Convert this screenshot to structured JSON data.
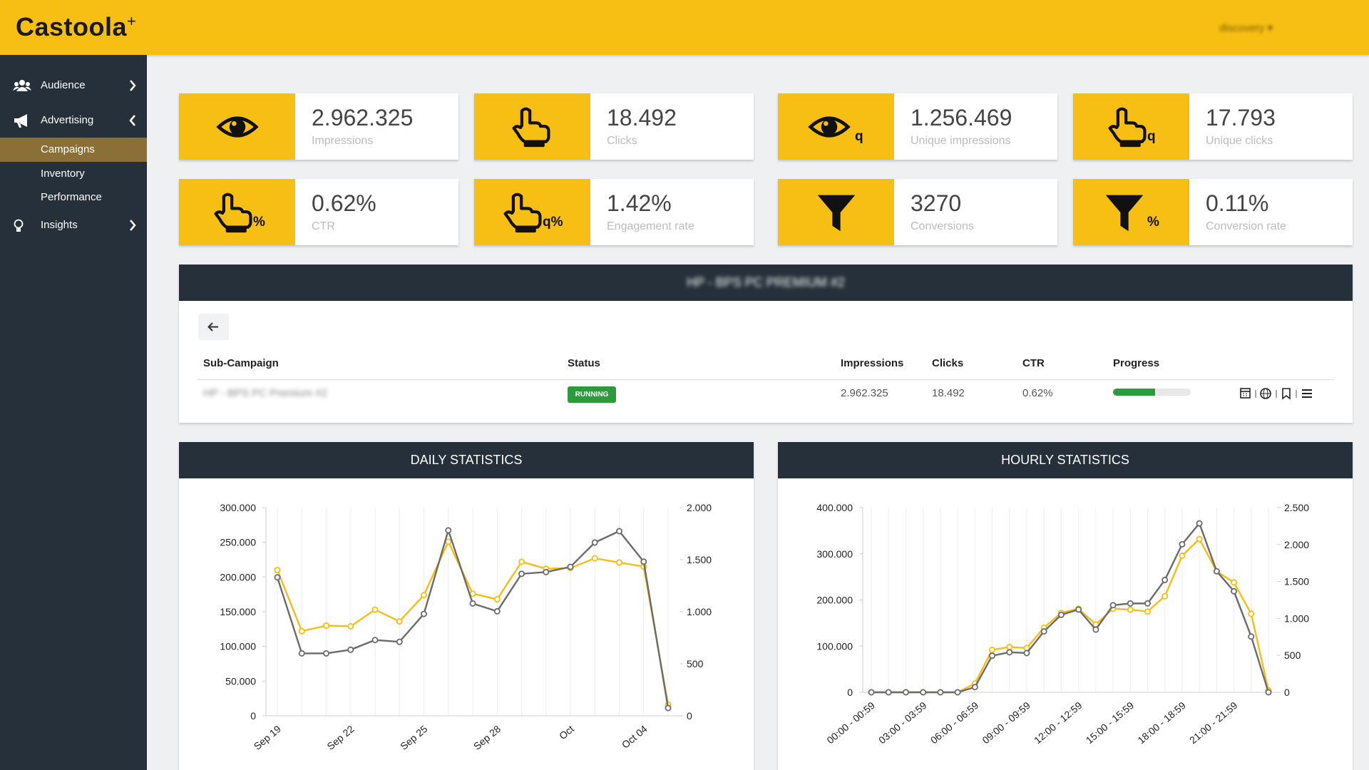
{
  "header": {
    "brand": "Castoola",
    "brand_mark": "+",
    "user": "discovery ▾"
  },
  "sidebar": {
    "items": [
      "Audience",
      "Advertising",
      "Campaigns",
      "Inventory",
      "Performance",
      "Insights"
    ]
  },
  "kpis": [
    {
      "value": "2.962.325",
      "label": "Impressions"
    },
    {
      "value": "18.492",
      "label": "Clicks"
    },
    {
      "value": "1.256.469",
      "label": "Unique impressions",
      "badge": "q"
    },
    {
      "value": "17.793",
      "label": "Unique clicks",
      "badge": "q"
    },
    {
      "value": "0.62%",
      "label": "CTR",
      "badge": "%"
    },
    {
      "value": "1.42%",
      "label": "Engagement rate",
      "badge": "q%"
    },
    {
      "value": "3270",
      "label": "Conversions"
    },
    {
      "value": "0.11%",
      "label": "Conversion rate",
      "badge": "%"
    }
  ],
  "campaign": {
    "title": "HP - BPS PC PREMIUM #2",
    "table": {
      "columns": [
        "Sub-Campaign",
        "Status",
        "Impressions",
        "Clicks",
        "CTR",
        "Progress"
      ],
      "rows": [
        [
          "HP - BPS PC Premium #2",
          "RUNNING",
          "2.962.325",
          "18.492",
          "0.62%"
        ]
      ],
      "progress": [
        54
      ]
    }
  },
  "chart_data": [
    {
      "type": "line",
      "title": "DAILY STATISTICS",
      "categories": [
        "Sep 19",
        null,
        null,
        "Sep 22",
        null,
        null,
        "Sep 25",
        null,
        null,
        "Sep 28",
        null,
        null,
        "Oct",
        null,
        null,
        "Oct 04",
        null
      ],
      "series": [
        {
          "color": "#f5bd17",
          "values": [
            210000,
            122000,
            130000,
            129000,
            153000,
            136000,
            174000,
            251000,
            176000,
            168000,
            222000,
            212000,
            213000,
            227000,
            221000,
            215000,
            16000
          ]
        },
        {
          "color": "#6b6b6b",
          "axis": "y2",
          "values": [
            1330,
            600,
            600,
            635,
            728,
            711,
            979,
            1782,
            1079,
            1004,
            1364,
            1381,
            1431,
            1665,
            1774,
            1481,
            75
          ]
        }
      ],
      "ylim": [
        0,
        300000
      ],
      "yticks": [
        0,
        {
          "value": 50000,
          "label": "50.000"
        },
        {
          "value": 100000,
          "label": "100.000"
        },
        {
          "value": 150000,
          "label": "150.000"
        },
        {
          "value": 200000,
          "label": "200.000"
        },
        {
          "value": 250000,
          "label": "250.000"
        },
        {
          "value": 300000,
          "label": "300.000"
        }
      ],
      "y2lim": [
        0,
        2000
      ],
      "y2ticks": [
        0,
        500,
        {
          "value": 1000,
          "label": "1.000"
        },
        {
          "value": 1500,
          "label": "1.500"
        },
        {
          "value": 2000,
          "label": "2.000"
        }
      ],
      "grid": "x"
    },
    {
      "type": "line",
      "title": "HOURLY STATISTICS",
      "categories": [
        "00:00 - 00:59",
        null,
        null,
        "03:00 - 03:59",
        null,
        null,
        "06:00 - 06:59",
        null,
        null,
        "09:00 - 09:59",
        null,
        null,
        "12:00 - 12:59",
        null,
        null,
        "15:00 - 15:59",
        null,
        null,
        "18:00 - 18:59",
        null,
        null,
        "21:00 - 21:59",
        null,
        null
      ],
      "series": [
        {
          "color": "#f5bd17",
          "values": [
            0,
            0,
            0,
            0,
            0,
            0,
            19000,
            92000,
            98000,
            96000,
            140000,
            172000,
            181000,
            147000,
            181000,
            179000,
            175000,
            208000,
            296000,
            332000,
            262000,
            238000,
            170000,
            4000
          ]
        },
        {
          "color": "#6b6b6b",
          "axis": "y2",
          "values": [
            0,
            0,
            0,
            0,
            0,
            0,
            70,
            495,
            542,
            531,
            825,
            1049,
            1120,
            849,
            1179,
            1203,
            1203,
            1521,
            2004,
            2287,
            1639,
            1368,
            755,
            0
          ]
        }
      ],
      "ylim": [
        0,
        400000
      ],
      "yticks": [
        0,
        {
          "value": 100000,
          "label": "100.000"
        },
        {
          "value": 200000,
          "label": "200.000"
        },
        {
          "value": 300000,
          "label": "300.000"
        },
        {
          "value": 400000,
          "label": "400.000"
        }
      ],
      "y2lim": [
        0,
        2500
      ],
      "y2ticks": [
        0,
        500,
        {
          "value": 1000,
          "label": "1.000"
        },
        {
          "value": 1500,
          "label": "1.500"
        },
        {
          "value": 2000,
          "label": "2.000"
        },
        {
          "value": 2500,
          "label": "2.500"
        }
      ],
      "grid": "x"
    }
  ]
}
